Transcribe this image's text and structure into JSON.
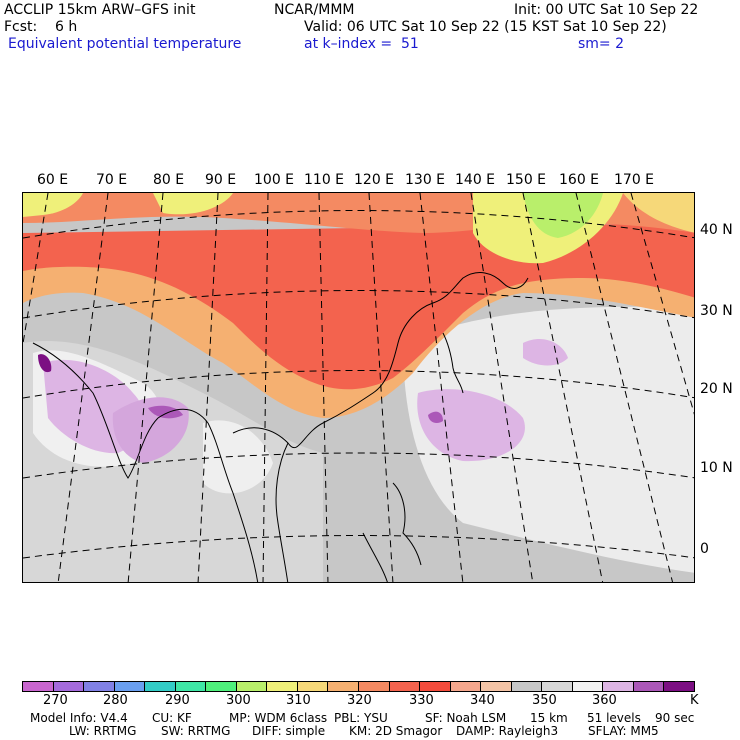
{
  "header": {
    "model": "ACCLIP 15km ARW–GFS init",
    "org": "NCAR/MMM",
    "init": "Init: 00 UTC Sat 10 Sep 22",
    "fcst": "Fcst:    6 h",
    "valid": "Valid: 06 UTC Sat 10 Sep 22 (15 KST Sat 10 Sep 22)",
    "field": "Equivalent potential temperature",
    "level": "at k–index =  51",
    "smooth": "sm= 2"
  },
  "map": {
    "lon_labels": [
      "60 E",
      "70 E",
      "80 E",
      "90 E",
      "100 E",
      "110 E",
      "120 E",
      "130 E",
      "140 E",
      "150 E",
      "160 E",
      "170 E"
    ],
    "lat_labels": [
      "40 N",
      "30 N",
      "20 N",
      "10 N",
      "0"
    ]
  },
  "colorbar": {
    "colors": [
      "#c966cf",
      "#a56bdc",
      "#8181e5",
      "#6a9ff0",
      "#33ccc6",
      "#3fe6a6",
      "#4ff07c",
      "#b9ef6b",
      "#eff07a",
      "#f6d879",
      "#f5b071",
      "#f48a62",
      "#f3634e",
      "#f34c3c",
      "#f5a78d",
      "#f3c4a6",
      "#c7c7c7",
      "#d7d7d7",
      "#f2f2f2",
      "#ddb5e4",
      "#ab58b8",
      "#7c0f83"
    ],
    "labels": [
      "270",
      "280",
      "290",
      "300",
      "310",
      "320",
      "330",
      "340",
      "350",
      "360",
      "K"
    ]
  },
  "footer": {
    "line1": [
      "Model Info: V4.4",
      "CU: KF",
      "MP: WDM 6class",
      "PBL: YSU",
      "SF: Noah LSM",
      "15 km",
      "51 levels",
      "90 sec"
    ],
    "line2": [
      "LW: RRTMG",
      "SW: RRTMG",
      "DIFF: simple",
      "KM: 2D Smagor",
      "DAMP: Rayleigh3",
      "SFLAY: MM5"
    ]
  }
}
